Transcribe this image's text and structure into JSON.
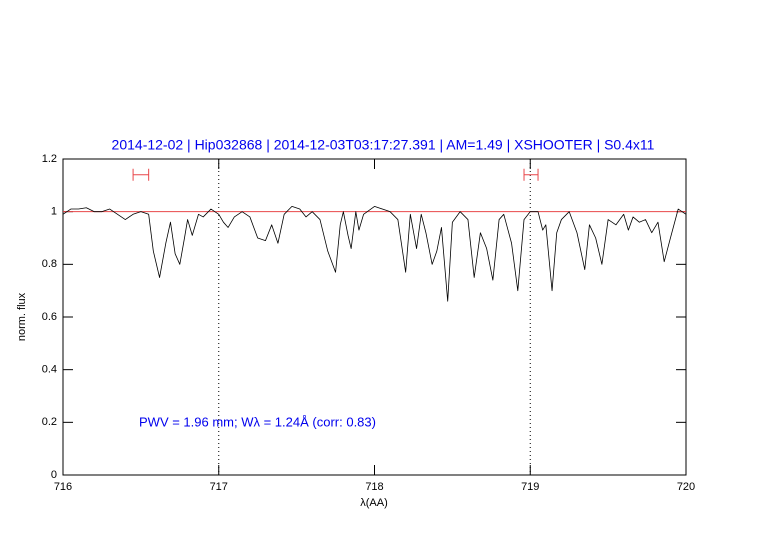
{
  "chart_data": {
    "type": "line",
    "title": "2014-12-02 | Hip032868 | 2014-12-03T03:17:27.391 | AM=1.49 | XSHOOTER | S0.4x11",
    "x_label": "λ(AA)",
    "y_label": "norm. flux",
    "annotation": "PWV = 1.96 mm; Wλ = 1.24Å (corr: 0.83)",
    "xlim": [
      716,
      720
    ],
    "ylim": [
      0,
      1.2
    ],
    "xticks": [
      716,
      717,
      718,
      719,
      720
    ],
    "yticks": [
      0,
      0.2,
      0.4,
      0.6,
      0.8,
      1,
      1.2
    ],
    "continuum": 1,
    "continuum_color": "#e8474a",
    "reference_lines": [
      717,
      719
    ],
    "windows": [
      [
        716.45,
        716.55
      ],
      [
        718.96,
        719.05
      ]
    ],
    "windows_y": 1.14,
    "series": [
      {
        "color": "#000000",
        "x": [
          716.0,
          716.05,
          716.1,
          716.15,
          716.2,
          716.25,
          716.3,
          716.35,
          716.4,
          716.45,
          716.5,
          716.55,
          716.58,
          716.62,
          716.66,
          716.69,
          716.72,
          716.75,
          716.78,
          716.8,
          716.83,
          716.87,
          716.9,
          716.95,
          717.0,
          717.03,
          717.06,
          717.1,
          717.15,
          717.2,
          717.25,
          717.3,
          717.34,
          717.38,
          717.42,
          717.47,
          717.52,
          717.56,
          717.6,
          717.65,
          717.7,
          717.75,
          717.78,
          717.8,
          717.83,
          717.85,
          717.88,
          717.9,
          717.93,
          718.0,
          718.1,
          718.15,
          718.2,
          718.23,
          718.27,
          718.3,
          718.33,
          718.37,
          718.4,
          718.43,
          718.47,
          718.5,
          718.55,
          718.6,
          718.64,
          718.68,
          718.72,
          718.76,
          718.8,
          718.83,
          718.88,
          718.92,
          718.96,
          719.0,
          719.05,
          719.08,
          719.1,
          719.14,
          719.17,
          719.2,
          719.25,
          719.3,
          719.35,
          719.38,
          719.42,
          719.46,
          719.5,
          719.55,
          719.6,
          719.63,
          719.66,
          719.7,
          719.74,
          719.78,
          719.82,
          719.86,
          719.9,
          719.95,
          720.0
        ],
        "values": [
          0.99,
          1.01,
          1.01,
          1.015,
          1.0,
          1.0,
          1.01,
          0.99,
          0.97,
          0.99,
          1.0,
          0.99,
          0.85,
          0.75,
          0.88,
          0.96,
          0.84,
          0.8,
          0.9,
          0.97,
          0.91,
          0.99,
          0.98,
          1.01,
          0.99,
          0.96,
          0.94,
          0.98,
          1.0,
          0.98,
          0.9,
          0.89,
          0.95,
          0.88,
          0.99,
          1.02,
          1.01,
          0.98,
          1.0,
          0.97,
          0.85,
          0.77,
          0.95,
          1.0,
          0.91,
          0.86,
          1.0,
          0.93,
          0.99,
          1.02,
          1.0,
          0.97,
          0.77,
          0.99,
          0.86,
          0.99,
          0.92,
          0.8,
          0.85,
          0.94,
          0.66,
          0.96,
          1.0,
          0.97,
          0.75,
          0.92,
          0.86,
          0.74,
          0.97,
          0.99,
          0.88,
          0.7,
          0.97,
          1.0,
          1.0,
          0.93,
          0.95,
          0.7,
          0.92,
          0.97,
          1.0,
          0.92,
          0.78,
          0.95,
          0.9,
          0.8,
          0.97,
          0.95,
          0.99,
          0.93,
          0.98,
          0.96,
          0.97,
          0.92,
          0.96,
          0.81,
          0.9,
          1.01,
          0.99
        ]
      }
    ]
  }
}
